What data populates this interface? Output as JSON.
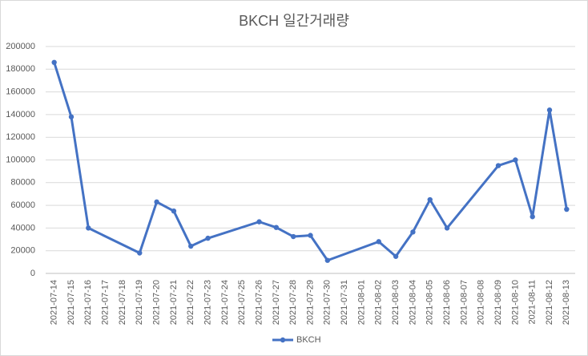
{
  "chart_data": {
    "type": "line",
    "title": "BKCH 일간거래량",
    "x": [
      "2021-07-14",
      "2021-07-15",
      "2021-07-16",
      "2021-07-19",
      "2021-07-20",
      "2021-07-21",
      "2021-07-22",
      "2021-07-23",
      "2021-07-26",
      "2021-07-27",
      "2021-07-28",
      "2021-07-29",
      "2021-07-30",
      "2021-08-02",
      "2021-08-03",
      "2021-08-04",
      "2021-08-05",
      "2021-08-06",
      "2021-08-09",
      "2021-08-10",
      "2021-08-11",
      "2021-08-12",
      "2021-08-13"
    ],
    "series": [
      {
        "name": "BKCH",
        "color": "#4472c4",
        "values": [
          186000,
          138000,
          40000,
          18000,
          63000,
          55000,
          24000,
          31000,
          45500,
          40500,
          32500,
          33500,
          11500,
          28000,
          15000,
          36500,
          65000,
          40000,
          95000,
          100000,
          50000,
          144000,
          56500
        ]
      }
    ],
    "xlim": [
      "2021-07-14",
      "2021-08-13"
    ],
    "xticks": [
      "2021-07-14",
      "2021-07-15",
      "2021-07-16",
      "2021-07-17",
      "2021-07-18",
      "2021-07-19",
      "2021-07-20",
      "2021-07-21",
      "2021-07-22",
      "2021-07-23",
      "2021-07-24",
      "2021-07-25",
      "2021-07-26",
      "2021-07-27",
      "2021-07-28",
      "2021-07-29",
      "2021-07-30",
      "2021-07-31",
      "2021-08-01",
      "2021-08-02",
      "2021-08-03",
      "2021-08-04",
      "2021-08-05",
      "2021-08-06",
      "2021-08-07",
      "2021-08-08",
      "2021-08-09",
      "2021-08-10",
      "2021-08-11",
      "2021-08-12",
      "2021-08-13"
    ],
    "ylim": [
      0,
      200000
    ],
    "yticks": [
      0,
      20000,
      40000,
      60000,
      80000,
      100000,
      120000,
      140000,
      160000,
      180000,
      200000
    ],
    "grid": true,
    "legend": "bottom"
  }
}
